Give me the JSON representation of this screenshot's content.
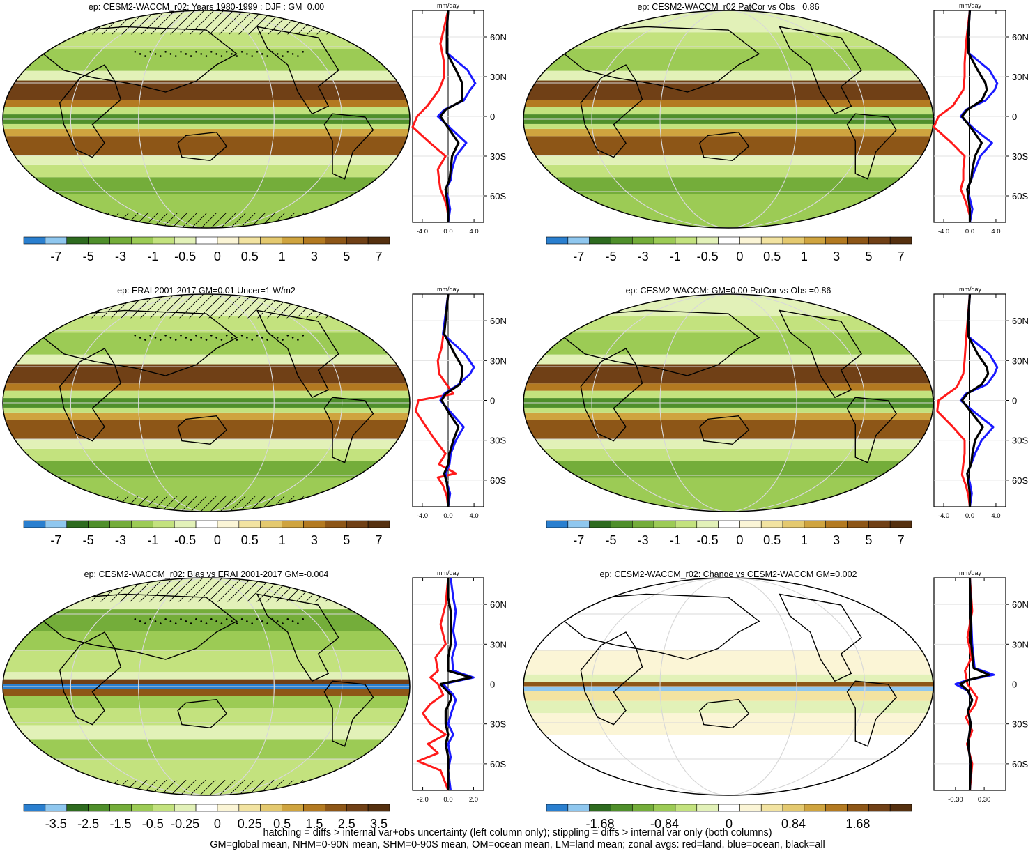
{
  "panels": [
    {
      "title": "ep: CESM2-WACCM_r02: Years 1980-1999 : DJF : GM=0.00",
      "colorbar_labels": [
        "-7",
        "-5",
        "-3",
        "-1",
        "-0.5",
        "0",
        "0.5",
        "1",
        "3",
        "5",
        "7"
      ],
      "hatched": true,
      "stippled": true
    },
    {
      "title": "ep: CESM2-WACCM_r02 PatCor vs Obs =0.86",
      "colorbar_labels": [
        "-7",
        "-5",
        "-3",
        "-1",
        "-0.5",
        "0",
        "0.5",
        "1",
        "3",
        "5",
        "7"
      ],
      "hatched": false,
      "stippled": false
    },
    {
      "title": "ep: ERAI 2001-2017 GM=0.01 Uncer=1 W/m2",
      "colorbar_labels": [
        "-7",
        "-5",
        "-3",
        "-1",
        "-0.5",
        "0",
        "0.5",
        "1",
        "3",
        "5",
        "7"
      ],
      "hatched": true,
      "stippled": true
    },
    {
      "title": "ep: CESM2-WACCM: GM=0.00 PatCor vs Obs =0.86",
      "colorbar_labels": [
        "-7",
        "-5",
        "-3",
        "-1",
        "-0.5",
        "0",
        "0.5",
        "1",
        "3",
        "5",
        "7"
      ],
      "hatched": false,
      "stippled": false
    },
    {
      "title": "ep: CESM2-WACCM_r02: Bias vs ERAI 2001-2017 GM=-0.004",
      "colorbar_labels": [
        "-3.5",
        "-2.5",
        "-1.5",
        "-0.5",
        "-0.25",
        "0",
        "0.25",
        "0.5",
        "1.5",
        "2.5",
        "3.5"
      ],
      "hatched": true,
      "stippled": true
    },
    {
      "title": "ep: CESM2-WACCM_r02: Change vs CESM2-WACCM GM=0.002",
      "colorbar_labels": [
        "-1.68",
        "-0.84",
        "0",
        "0.84",
        "1.68"
      ],
      "hatched": false,
      "stippled": false
    }
  ],
  "colorbar_colors": [
    "#2a7fcf",
    "#8fc7ef",
    "#2e6b1f",
    "#4f8f2b",
    "#74ad3a",
    "#9ccb55",
    "#c3e27e",
    "#e2f1b8",
    "#ffffff",
    "#fbf5d6",
    "#f2e3a1",
    "#e4c96f",
    "#cfa43f",
    "#b37a21",
    "#8d5617",
    "#704016",
    "#55300f"
  ],
  "zonal_panels": [
    {
      "unit": "mm/day",
      "xticks": [
        "-4.0",
        "0.0",
        "4.0"
      ],
      "yticks": [
        "60N",
        "30N",
        "0",
        "30S",
        "60S"
      ]
    },
    {
      "unit": "mm/day",
      "xticks": [
        "-4.0",
        "0.0",
        "4.0"
      ],
      "yticks": [
        "60N",
        "30N",
        "0",
        "30S",
        "60S"
      ]
    },
    {
      "unit": "mm/day",
      "xticks": [
        "-4.0",
        "0.0",
        "4.0"
      ],
      "yticks": [
        "60N",
        "30N",
        "0",
        "30S",
        "60S"
      ]
    },
    {
      "unit": "mm/day",
      "xticks": [
        "-4.0",
        "0.0",
        "4.0"
      ],
      "yticks": [
        "60N",
        "30N",
        "0",
        "30S",
        "60S"
      ]
    },
    {
      "unit": "mm/day",
      "xticks": [
        "-2.0",
        "0.0",
        "2.0"
      ],
      "yticks": [
        "60N",
        "30N",
        "0",
        "30S",
        "60S"
      ]
    },
    {
      "unit": "mm/day",
      "xticks": [
        "-0.30",
        "0.30"
      ],
      "yticks": [
        "60N",
        "30N",
        "0",
        "30S",
        "60S"
      ]
    }
  ],
  "footer": [
    "hatching = diffs > internal var+obs uncertainty (left column only); stippling = diffs > internal var only (both columns)",
    "GM=global mean, NHM=0-90N mean, SHM=0-90S mean, OM=ocean mean, LM=land mean; zonal avgs: red=land, blue=ocean, black=all"
  ],
  "chart_data": [
    {
      "type": "line",
      "title": "",
      "xlabel": "mm/day",
      "xlim": [
        -5.5,
        5.5
      ],
      "ylim": [
        -80,
        80
      ],
      "series": [
        {
          "name": "land",
          "x": [
            0.0,
            0.0,
            -0.2,
            -0.6,
            -1.2,
            -1.4,
            -1.6,
            -0.4,
            -2.8,
            -5.5,
            -4.8,
            -3.2,
            -1.4,
            -0.6,
            -0.6,
            -1.2,
            0.0
          ],
          "y": [
            -80,
            -75,
            -68,
            -62,
            -55,
            -48,
            -40,
            -30,
            -20,
            -8,
            0,
            8,
            20,
            30,
            40,
            55,
            80
          ]
        },
        {
          "name": "ocean",
          "x": [
            0.0,
            0.3,
            0.0,
            -0.4,
            0.4,
            0.6,
            1.2,
            2.8,
            0.6,
            -1.6,
            -0.6,
            2.4,
            3.4,
            4.2,
            3.0,
            -0.2,
            -0.2,
            0.0
          ],
          "y": [
            -80,
            -70,
            -62,
            -55,
            -48,
            -40,
            -30,
            -20,
            -10,
            0,
            5,
            12,
            20,
            25,
            35,
            48,
            65,
            80
          ]
        },
        {
          "name": "all",
          "x": [
            0.0,
            0.0,
            -0.2,
            -0.4,
            0.2,
            0.4,
            0.6,
            1.6,
            0.2,
            -1.2,
            -0.4,
            2.2,
            2.2,
            2.2,
            1.2,
            -0.2,
            -0.2,
            0.0
          ],
          "y": [
            -80,
            -70,
            -62,
            -55,
            -48,
            -40,
            -30,
            -20,
            -10,
            0,
            5,
            12,
            20,
            25,
            35,
            48,
            65,
            80
          ]
        }
      ]
    },
    {
      "type": "line",
      "title": "",
      "xlabel": "mm/day",
      "xlim": [
        -5.5,
        5.5
      ],
      "ylim": [
        -80,
        80
      ],
      "series": [
        {
          "name": "land",
          "x": [
            0.0,
            0.0,
            -0.4,
            -0.8,
            -1.4,
            -1.0,
            -1.0,
            -0.8,
            -2.8,
            -5.5,
            -4.8,
            -2.6,
            -1.0,
            -0.8,
            -0.8,
            -0.6,
            0.0
          ],
          "y": [
            -80,
            -75,
            -68,
            -62,
            -55,
            -48,
            -40,
            -30,
            -20,
            -8,
            0,
            8,
            20,
            30,
            40,
            55,
            80
          ]
        },
        {
          "name": "ocean",
          "x": [
            0.0,
            0.4,
            0.0,
            -0.4,
            0.2,
            0.8,
            1.6,
            3.4,
            0.8,
            -1.4,
            -0.6,
            2.4,
            3.8,
            4.2,
            3.0,
            -0.2,
            -0.2,
            0.0
          ],
          "y": [
            -80,
            -70,
            -62,
            -55,
            -48,
            -40,
            -30,
            -20,
            -10,
            0,
            5,
            12,
            20,
            25,
            35,
            48,
            65,
            80
          ]
        },
        {
          "name": "all",
          "x": [
            0.0,
            0.0,
            -0.2,
            -0.4,
            0.2,
            0.4,
            0.8,
            1.8,
            0.4,
            -1.2,
            -0.4,
            1.8,
            2.6,
            2.4,
            1.2,
            -0.2,
            -0.2,
            0.0
          ],
          "y": [
            -80,
            -70,
            -62,
            -55,
            -48,
            -40,
            -30,
            -20,
            -10,
            0,
            5,
            12,
            20,
            25,
            35,
            48,
            65,
            80
          ]
        }
      ]
    },
    {
      "type": "line",
      "title": "",
      "xlabel": "mm/day",
      "xlim": [
        -5.5,
        5.5
      ],
      "ylim": [
        -80,
        80
      ],
      "series": [
        {
          "name": "land",
          "x": [
            0.0,
            -0.2,
            -0.8,
            -1.6,
            1.2,
            -1.4,
            -0.4,
            -2.0,
            -3.4,
            -5.0,
            -4.6,
            0.8,
            -1.4,
            -1.6,
            -1.0,
            -0.6,
            0.0
          ],
          "y": [
            -80,
            -72,
            -64,
            -58,
            -55,
            -48,
            -40,
            -30,
            -20,
            -8,
            0,
            5,
            20,
            30,
            40,
            55,
            80
          ]
        },
        {
          "name": "ocean",
          "x": [
            0.0,
            0.3,
            -0.2,
            -0.4,
            0.2,
            0.4,
            1.2,
            2.4,
            0.6,
            -1.2,
            -0.6,
            1.6,
            3.4,
            4.0,
            2.6,
            -0.8,
            0.0
          ],
          "y": [
            -80,
            -70,
            -62,
            -55,
            -48,
            -40,
            -30,
            -20,
            -10,
            0,
            5,
            12,
            20,
            25,
            35,
            50,
            80
          ]
        },
        {
          "name": "all",
          "x": [
            0.0,
            0.0,
            -0.2,
            -0.6,
            0.0,
            0.2,
            0.8,
            1.6,
            0.2,
            -1.0,
            -0.4,
            1.8,
            2.2,
            2.2,
            1.0,
            -0.6,
            0.0
          ],
          "y": [
            -80,
            -70,
            -62,
            -55,
            -48,
            -40,
            -30,
            -20,
            -10,
            0,
            5,
            12,
            20,
            25,
            35,
            50,
            80
          ]
        }
      ]
    },
    {
      "type": "line",
      "title": "",
      "xlabel": "mm/day",
      "xlim": [
        -5.5,
        5.5
      ],
      "ylim": [
        -80,
        80
      ],
      "series": [
        {
          "name": "land",
          "x": [
            0.0,
            -0.2,
            -0.6,
            -1.2,
            -1.0,
            -0.8,
            -0.8,
            -2.6,
            -5.0,
            -4.8,
            -2.0,
            -1.0,
            -0.8,
            -0.6,
            0.0
          ],
          "y": [
            -80,
            -72,
            -64,
            -56,
            -48,
            -40,
            -30,
            -20,
            -8,
            0,
            10,
            20,
            30,
            45,
            80
          ]
        },
        {
          "name": "ocean",
          "x": [
            0.0,
            0.3,
            0.0,
            -0.4,
            0.2,
            0.8,
            1.8,
            3.6,
            1.0,
            -1.4,
            -0.6,
            2.6,
            3.8,
            4.2,
            3.0,
            -0.2,
            -0.2,
            0.0
          ],
          "y": [
            -80,
            -70,
            -62,
            -55,
            -48,
            -40,
            -30,
            -20,
            -10,
            0,
            5,
            12,
            20,
            25,
            35,
            48,
            65,
            80
          ]
        },
        {
          "name": "all",
          "x": [
            0.0,
            0.0,
            -0.2,
            -0.4,
            0.2,
            0.4,
            0.8,
            2.0,
            0.4,
            -1.2,
            -0.4,
            1.8,
            2.8,
            2.6,
            1.2,
            -0.2,
            -0.2,
            0.0
          ],
          "y": [
            -80,
            -70,
            -62,
            -55,
            -48,
            -40,
            -30,
            -20,
            -10,
            0,
            5,
            12,
            20,
            25,
            35,
            48,
            65,
            80
          ]
        }
      ]
    },
    {
      "type": "line",
      "title": "",
      "xlabel": "mm/day",
      "xlim": [
        -2.8,
        2.8
      ],
      "ylim": [
        -80,
        80
      ],
      "series": [
        {
          "name": "land",
          "x": [
            0.0,
            -0.6,
            -2.4,
            -0.8,
            -1.6,
            -0.2,
            -1.4,
            -2.0,
            -1.4,
            -0.4,
            -0.8,
            -1.4,
            -0.8,
            -1.0,
            -0.2,
            -0.6,
            -0.2,
            0.0
          ],
          "y": [
            -80,
            -65,
            -58,
            -52,
            -45,
            -38,
            -30,
            -22,
            -15,
            -8,
            0,
            5,
            10,
            20,
            30,
            45,
            60,
            80
          ]
        },
        {
          "name": "ocean",
          "x": [
            0.2,
            0.0,
            0.2,
            0.0,
            0.4,
            0.0,
            0.3,
            0.6,
            0.4,
            -0.4,
            2.0,
            0.4,
            0.3,
            0.6,
            0.4,
            0.6,
            0.4,
            0.2
          ],
          "y": [
            -80,
            -65,
            -55,
            -45,
            -38,
            -30,
            -20,
            -12,
            -8,
            0,
            5,
            10,
            20,
            30,
            40,
            55,
            65,
            80
          ]
        },
        {
          "name": "all",
          "x": [
            0.0,
            0.0,
            0.0,
            -0.2,
            0.0,
            -0.2,
            -0.2,
            0.2,
            0.2,
            -0.6,
            1.8,
            0.0,
            0.0,
            0.2,
            0.2,
            0.2,
            0.0,
            0.0
          ],
          "y": [
            -80,
            -65,
            -55,
            -45,
            -38,
            -30,
            -20,
            -12,
            -8,
            0,
            5,
            10,
            20,
            30,
            40,
            55,
            65,
            80
          ]
        }
      ]
    },
    {
      "type": "line",
      "title": "",
      "xlabel": "mm/day",
      "xlim": [
        -0.75,
        0.75
      ],
      "ylim": [
        -80,
        80
      ],
      "series": [
        {
          "name": "land",
          "x": [
            0.0,
            0.05,
            -0.06,
            0.05,
            -0.08,
            0.12,
            0.15,
            -0.05,
            -0.1,
            0.04,
            -0.05,
            0.05,
            0.0
          ],
          "y": [
            -80,
            -60,
            -45,
            -35,
            -25,
            -15,
            -10,
            0,
            10,
            20,
            35,
            55,
            80
          ]
        },
        {
          "name": "ocean",
          "x": [
            0.0,
            0.02,
            -0.04,
            0.02,
            -0.04,
            0.05,
            -0.05,
            -0.3,
            -0.05,
            0.5,
            0.1,
            0.05,
            0.02,
            0.0
          ],
          "y": [
            -80,
            -60,
            -45,
            -30,
            -20,
            -12,
            -5,
            0,
            3,
            7,
            12,
            30,
            55,
            80
          ]
        },
        {
          "name": "all",
          "x": [
            0.0,
            0.02,
            -0.04,
            0.02,
            -0.04,
            0.05,
            -0.04,
            -0.2,
            -0.04,
            0.4,
            0.08,
            0.03,
            0.02,
            0.0
          ],
          "y": [
            -80,
            -60,
            -45,
            -30,
            -20,
            -12,
            -5,
            0,
            3,
            7,
            12,
            30,
            55,
            80
          ]
        }
      ]
    }
  ]
}
